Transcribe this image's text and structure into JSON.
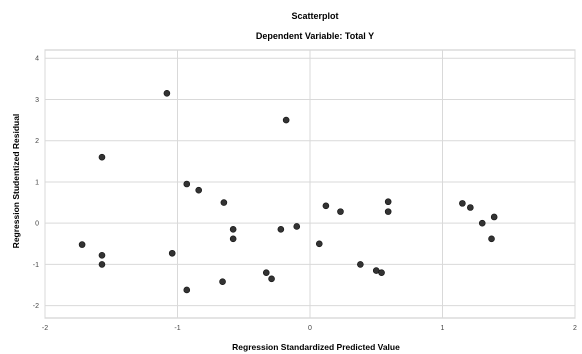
{
  "chart_data": {
    "type": "scatter",
    "title": "Scatterplot",
    "subtitle": "Dependent Variable: Total Y",
    "xlabel": "Regression Standardized Predicted Value",
    "ylabel": "Regression Studentized Residual",
    "xlim": [
      -2.0,
      2.0
    ],
    "ylim": [
      -2.3,
      4.2
    ],
    "xticks": [
      -2,
      -1,
      0,
      1,
      2
    ],
    "xtick_labels": [
      "-2",
      "-1",
      "0",
      "1",
      "2"
    ],
    "yticks": [
      -2,
      -1,
      0,
      1,
      2,
      3,
      4
    ],
    "ytick_labels": [
      "-2",
      "-1",
      "0",
      "1",
      "2",
      "3",
      "4"
    ],
    "grid": true,
    "colors": {
      "point": "#333333",
      "grid": "#d9d9d9",
      "frame": "#c8c8c8"
    },
    "points": [
      {
        "x": -1.08,
        "y": 3.15
      },
      {
        "x": -0.18,
        "y": 2.5
      },
      {
        "x": -1.57,
        "y": 1.6
      },
      {
        "x": -0.93,
        "y": 0.95
      },
      {
        "x": -0.84,
        "y": 0.8
      },
      {
        "x": -0.65,
        "y": 0.5
      },
      {
        "x": 0.12,
        "y": 0.42
      },
      {
        "x": 0.23,
        "y": 0.28
      },
      {
        "x": 0.59,
        "y": 0.52
      },
      {
        "x": 0.59,
        "y": 0.28
      },
      {
        "x": 1.15,
        "y": 0.48
      },
      {
        "x": 1.21,
        "y": 0.38
      },
      {
        "x": 1.39,
        "y": 0.15
      },
      {
        "x": 1.3,
        "y": 0.0
      },
      {
        "x": 1.37,
        "y": -0.38
      },
      {
        "x": -0.58,
        "y": -0.15
      },
      {
        "x": -0.58,
        "y": -0.38
      },
      {
        "x": -0.22,
        "y": -0.15
      },
      {
        "x": -0.1,
        "y": -0.08
      },
      {
        "x": 0.07,
        "y": -0.5
      },
      {
        "x": -1.72,
        "y": -0.52
      },
      {
        "x": -1.57,
        "y": -0.78
      },
      {
        "x": -1.57,
        "y": -1.0
      },
      {
        "x": -1.04,
        "y": -0.73
      },
      {
        "x": -0.33,
        "y": -1.2
      },
      {
        "x": -0.29,
        "y": -1.35
      },
      {
        "x": 0.38,
        "y": -1.0
      },
      {
        "x": 0.5,
        "y": -1.15
      },
      {
        "x": 0.54,
        "y": -1.2
      },
      {
        "x": -0.66,
        "y": -1.42
      },
      {
        "x": -0.93,
        "y": -1.62
      }
    ]
  }
}
